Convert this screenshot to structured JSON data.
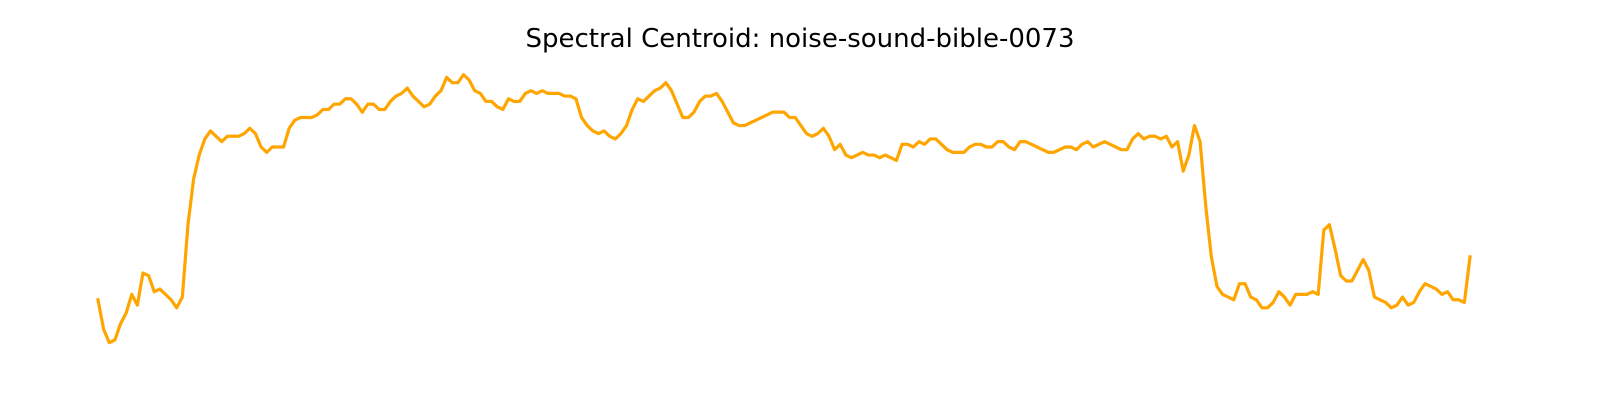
{
  "chart_data": {
    "type": "line",
    "title": "Spectral Centroid: noise-sound-bible-0073",
    "xlabel": "",
    "ylabel": "",
    "axes_visible": false,
    "grid": false,
    "legend": "none",
    "line_color": "#FFA500",
    "ylim": [
      0,
      100
    ],
    "series": [
      {
        "values": [
          18,
          7,
          2,
          3,
          9,
          13,
          20,
          16,
          28,
          27,
          21,
          22,
          20,
          18,
          15,
          19,
          46,
          63,
          72,
          78,
          81,
          79,
          77,
          79,
          79,
          79,
          80,
          82,
          80,
          75,
          73,
          75,
          75,
          75,
          82,
          85,
          86,
          86,
          86,
          87,
          89,
          89,
          91,
          91,
          93,
          93,
          91,
          88,
          91,
          91,
          89,
          89,
          92,
          94,
          95,
          97,
          94,
          92,
          90,
          91,
          94,
          96,
          101,
          99,
          99,
          102,
          100,
          96,
          95,
          92,
          92,
          90,
          89,
          93,
          92,
          92,
          95,
          96,
          95,
          96,
          95,
          95,
          95,
          94,
          94,
          93,
          86,
          83,
          81,
          80,
          81,
          79,
          78,
          80,
          83,
          89,
          93,
          92,
          94,
          96,
          97,
          99,
          96,
          91,
          86,
          86,
          88,
          92,
          94,
          94,
          95,
          92,
          88,
          84,
          83,
          83,
          84,
          85,
          86,
          87,
          88,
          88,
          88,
          86,
          86,
          83,
          80,
          79,
          80,
          82,
          79,
          74,
          76,
          72,
          71,
          72,
          73,
          72,
          72,
          71,
          72,
          71,
          70,
          76,
          76,
          75,
          77,
          76,
          78,
          78,
          76,
          74,
          73,
          73,
          73,
          75,
          76,
          76,
          75,
          75,
          77,
          77,
          75,
          74,
          77,
          77,
          76,
          75,
          74,
          73,
          73,
          74,
          75,
          75,
          74,
          76,
          77,
          75,
          76,
          77,
          76,
          75,
          74,
          74,
          78,
          80,
          78,
          79,
          79,
          78,
          79,
          75,
          77,
          66,
          72,
          83,
          77,
          53,
          34,
          23,
          20,
          19,
          18,
          24,
          24,
          19,
          18,
          15,
          15,
          17,
          21,
          19,
          16,
          20,
          20,
          20,
          21,
          20,
          44,
          46,
          37,
          27,
          25,
          25,
          29,
          33,
          29,
          19,
          18,
          17,
          15,
          16,
          19,
          16,
          17,
          21,
          24,
          23,
          22,
          20,
          21,
          18,
          18,
          17,
          34
        ]
      }
    ]
  }
}
